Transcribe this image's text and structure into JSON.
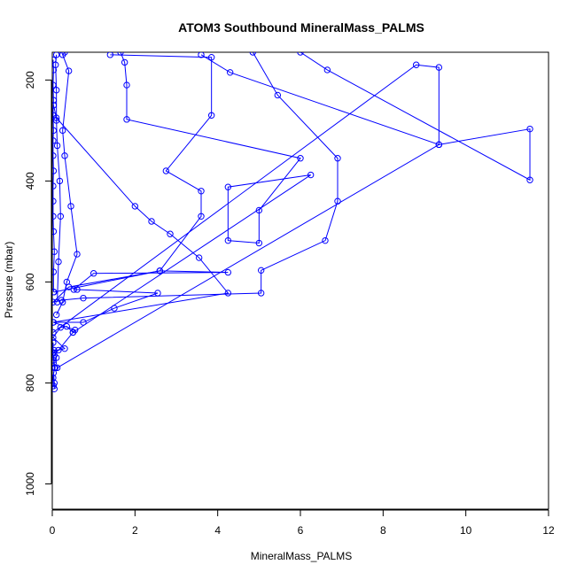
{
  "chart_data": {
    "type": "line",
    "title": "ATOM3 Southbound MineralMass_PALMS",
    "xlabel": "MineralMass_PALMS",
    "ylabel": "Pressure (mbar)",
    "xlim": [
      0,
      12
    ],
    "ylim": [
      1050,
      145
    ],
    "y_reversed": true,
    "x_ticks": [
      0,
      2,
      4,
      6,
      8,
      10,
      12
    ],
    "y_ticks": [
      200,
      400,
      600,
      800,
      1000
    ],
    "grid": false,
    "legend": "none",
    "colors": {
      "series": "#0000ff",
      "axes": "#000000"
    },
    "series": [
      {
        "values": [
          [
            0.03,
            806
          ],
          [
            0.02,
            790
          ],
          [
            0.05,
            770
          ],
          [
            0.03,
            760
          ],
          [
            0.1,
            750
          ],
          [
            0.04,
            735
          ],
          [
            0.15,
            735
          ],
          [
            0.3,
            732
          ],
          [
            0.02,
            710
          ],
          [
            0.2,
            690
          ],
          [
            0.35,
            688
          ],
          [
            0.5,
            700
          ],
          [
            0.55,
            695
          ],
          [
            0.03,
            680
          ],
          [
            0.75,
            680
          ],
          [
            1.5,
            652
          ],
          [
            2.55,
            622
          ],
          [
            0.6,
            615
          ],
          [
            0.52,
            615
          ],
          [
            1.0,
            583
          ],
          [
            4.25,
            581
          ],
          [
            2.6,
            578
          ],
          [
            0.4,
            610
          ],
          [
            0.02,
            640
          ],
          [
            0.22,
            636
          ],
          [
            0.75,
            632
          ],
          [
            5.05,
            622
          ],
          [
            5.05,
            577
          ],
          [
            6.6,
            518
          ],
          [
            6.9,
            440
          ],
          [
            6.9,
            355
          ],
          [
            5.45,
            230
          ],
          [
            4.85,
            145
          ]
        ]
      },
      {
        "values": [
          [
            0.02,
            680
          ],
          [
            4.25,
            622
          ],
          [
            3.55,
            552
          ],
          [
            2.85,
            505
          ],
          [
            2.4,
            480
          ],
          [
            2.0,
            450
          ],
          [
            0.1,
            275
          ],
          [
            0.03,
            250
          ]
        ]
      },
      {
        "values": [
          [
            0.04,
            620
          ],
          [
            2.6,
            578
          ],
          [
            3.6,
            470
          ],
          [
            3.6,
            420
          ],
          [
            2.75,
            380
          ],
          [
            3.85,
            270
          ],
          [
            3.85,
            155
          ],
          [
            1.4,
            150
          ]
        ]
      },
      {
        "values": [
          [
            0.05,
            745
          ],
          [
            0.5,
            700
          ],
          [
            6.25,
            388
          ],
          [
            4.25,
            412
          ],
          [
            4.25,
            518
          ],
          [
            5.0,
            523
          ],
          [
            5.0,
            458
          ],
          [
            6.0,
            355
          ],
          [
            1.8,
            278
          ],
          [
            1.8,
            210
          ],
          [
            1.75,
            165
          ],
          [
            1.65,
            145
          ]
        ]
      },
      {
        "values": [
          [
            0.12,
            770
          ],
          [
            9.35,
            328
          ],
          [
            11.55,
            297
          ],
          [
            11.55,
            398
          ],
          [
            6.65,
            180
          ],
          [
            6.0,
            145
          ]
        ]
      },
      {
        "values": [
          [
            0.02,
            700
          ],
          [
            8.8,
            170
          ],
          [
            9.35,
            175
          ],
          [
            9.35,
            328
          ],
          [
            4.3,
            185
          ],
          [
            3.6,
            150
          ]
        ]
      },
      {
        "values": [
          [
            0.03,
            620
          ],
          [
            0.03,
            580
          ],
          [
            0.05,
            540
          ],
          [
            0.03,
            500
          ],
          [
            0.02,
            470
          ],
          [
            0.02,
            440
          ],
          [
            0.02,
            410
          ],
          [
            0.03,
            380
          ],
          [
            0.02,
            350
          ],
          [
            0.02,
            320
          ],
          [
            0.03,
            300
          ],
          [
            0.02,
            270
          ],
          [
            0.03,
            240
          ],
          [
            0.02,
            210
          ],
          [
            0.03,
            180
          ],
          [
            0.02,
            160
          ]
        ]
      },
      {
        "values": [
          [
            0.12,
            640
          ],
          [
            0.15,
            560
          ],
          [
            0.2,
            470
          ],
          [
            0.18,
            400
          ],
          [
            0.12,
            330
          ],
          [
            0.1,
            280
          ],
          [
            0.1,
            220
          ],
          [
            0.08,
            170
          ],
          [
            0.1,
            150
          ]
        ]
      },
      {
        "values": [
          [
            0.1,
            665
          ],
          [
            0.25,
            640
          ],
          [
            0.35,
            600
          ],
          [
            0.6,
            545
          ],
          [
            0.45,
            450
          ],
          [
            0.3,
            350
          ],
          [
            0.25,
            300
          ],
          [
            0.4,
            182
          ],
          [
            0.25,
            150
          ],
          [
            0.3,
            145
          ]
        ]
      },
      {
        "values": [
          [
            0.05,
            812
          ],
          [
            0.05,
            800
          ],
          [
            0.03,
            780
          ],
          [
            0.07,
            770
          ],
          [
            0.03,
            755
          ],
          [
            0.02,
            740
          ],
          [
            0.02,
            720
          ]
        ]
      }
    ]
  }
}
